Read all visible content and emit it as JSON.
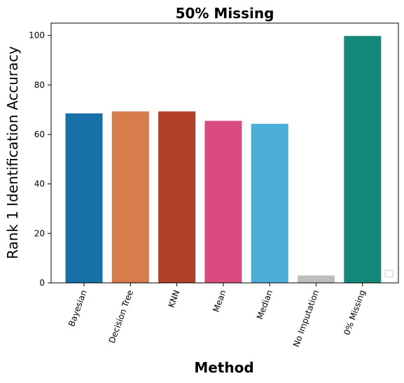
{
  "chart_data": {
    "type": "bar",
    "title": "50% Missing",
    "xlabel": "Method",
    "ylabel": "Rank 1 Identification Accuracy",
    "categories": [
      "Bayesian",
      "Decision Tree",
      "KNN",
      "Mean",
      "Median",
      "No Imputation",
      "0% Missing"
    ],
    "values": [
      68.5,
      69.3,
      69.3,
      65.5,
      64.3,
      3.0,
      99.8
    ],
    "colors": [
      "#1770a8",
      "#d67d4b",
      "#b34129",
      "#da4b80",
      "#4baed8",
      "#bdbdbd",
      "#138778"
    ],
    "ylim": [
      0,
      105
    ],
    "yticks": [
      0,
      20,
      40,
      60,
      80,
      100
    ],
    "xtick_rotation": 70,
    "grid": false,
    "legend": "lower-right (empty)"
  }
}
